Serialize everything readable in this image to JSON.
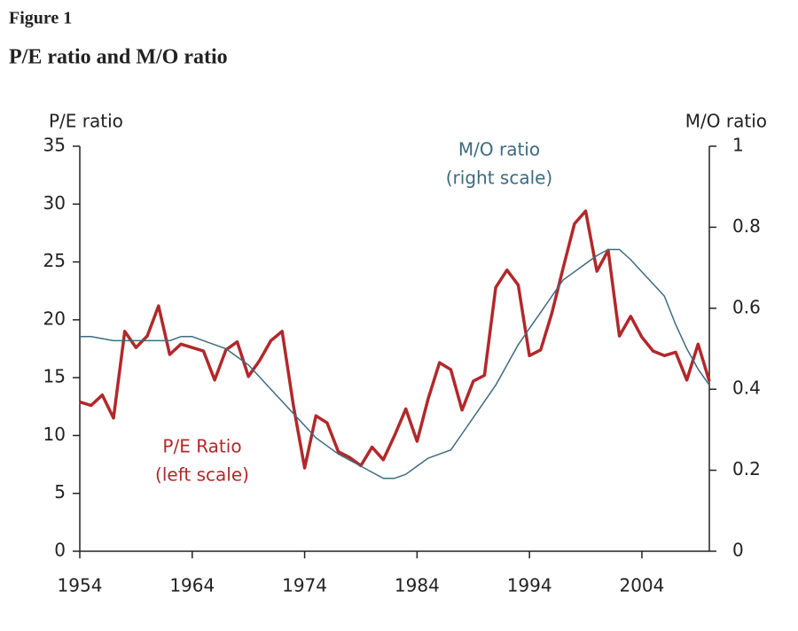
{
  "chart_data": {
    "type": "line",
    "title": "Figure 1",
    "subtitle": "P/E ratio and M/O ratio",
    "y_label": "P/E ratio",
    "y2_label": "M/O ratio",
    "x": [
      1954,
      1955,
      1956,
      1957,
      1958,
      1959,
      1960,
      1961,
      1962,
      1963,
      1964,
      1965,
      1966,
      1967,
      1968,
      1969,
      1970,
      1971,
      1972,
      1973,
      1974,
      1975,
      1976,
      1977,
      1978,
      1979,
      1980,
      1981,
      1982,
      1983,
      1984,
      1985,
      1986,
      1987,
      1988,
      1989,
      1990,
      1991,
      1992,
      1993,
      1994,
      1995,
      1996,
      1997,
      1998,
      1999,
      2000,
      2001,
      2002,
      2003,
      2004,
      2005,
      2006,
      2007,
      2008,
      2009,
      2010
    ],
    "xlim": [
      1954,
      2010
    ],
    "xticks": [
      1954,
      1964,
      1974,
      1984,
      1994,
      2004
    ],
    "ylim": [
      0,
      35
    ],
    "yticks": [
      0,
      5,
      10,
      15,
      20,
      25,
      30,
      35
    ],
    "y2lim": [
      0,
      1
    ],
    "y2ticks": [
      0,
      0.2,
      0.4,
      0.6,
      0.8,
      1
    ],
    "grid": false,
    "series": [
      {
        "name": "P/E Ratio",
        "annotation": [
          "P/E Ratio",
          "(left scale)"
        ],
        "color": "#b2282a",
        "axis": "y",
        "values": [
          12.9,
          12.6,
          13.5,
          11.5,
          19.0,
          17.6,
          18.6,
          21.2,
          17.0,
          17.9,
          17.6,
          17.3,
          14.8,
          17.4,
          18.1,
          15.1,
          16.5,
          18.2,
          19.0,
          12.6,
          7.2,
          11.7,
          11.1,
          8.6,
          8.1,
          7.4,
          9.0,
          7.9,
          10.0,
          12.3,
          9.5,
          13.2,
          16.3,
          15.7,
          12.2,
          14.7,
          15.2,
          22.8,
          24.3,
          23.0,
          16.9,
          17.4,
          20.6,
          24.5,
          28.3,
          29.4,
          24.2,
          26.0,
          18.6,
          20.3,
          18.5,
          17.3,
          16.9,
          17.2,
          14.8,
          17.9,
          14.7
        ]
      },
      {
        "name": "M/O ratio",
        "annotation": [
          "M/O ratio",
          "(right scale)"
        ],
        "color": "#3d6b80",
        "axis": "y2",
        "values": [
          0.53,
          0.53,
          0.525,
          0.52,
          0.52,
          0.52,
          0.52,
          0.52,
          0.52,
          0.53,
          0.53,
          0.52,
          0.51,
          0.5,
          0.48,
          0.46,
          0.43,
          0.4,
          0.37,
          0.34,
          0.31,
          0.28,
          0.26,
          0.24,
          0.225,
          0.21,
          0.195,
          0.18,
          0.18,
          0.19,
          0.21,
          0.23,
          0.24,
          0.25,
          0.29,
          0.33,
          0.37,
          0.41,
          0.46,
          0.51,
          0.55,
          0.59,
          0.63,
          0.67,
          0.69,
          0.71,
          0.73,
          0.745,
          0.745,
          0.72,
          0.69,
          0.66,
          0.63,
          0.56,
          0.5,
          0.45,
          0.41
        ]
      }
    ]
  }
}
